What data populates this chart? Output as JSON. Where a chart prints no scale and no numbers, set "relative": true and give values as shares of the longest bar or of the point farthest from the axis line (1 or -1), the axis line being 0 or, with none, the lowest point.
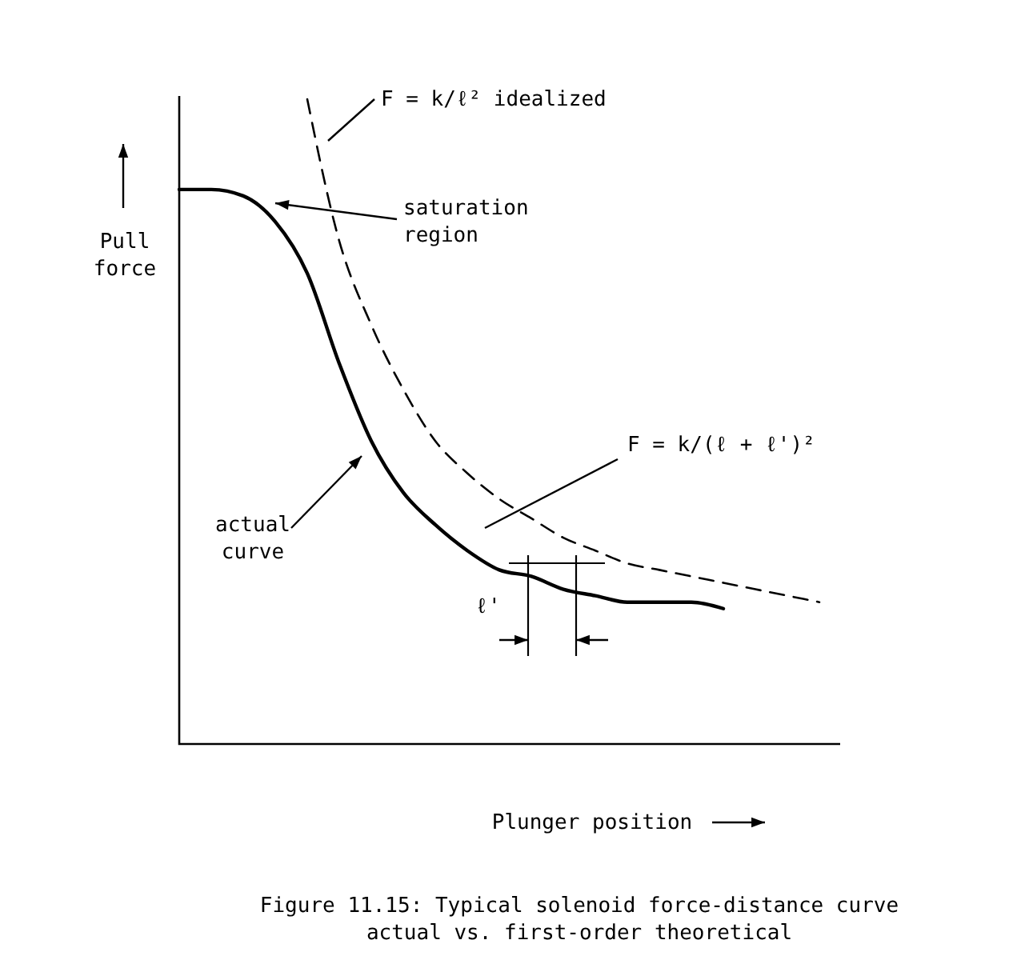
{
  "chart_data": {
    "type": "line",
    "relative": true,
    "ylabel": "Pull force",
    "xlabel": "Plunger position",
    "categories": [
      null,
      null,
      null,
      null,
      null,
      null,
      null,
      null,
      null,
      null,
      null,
      null,
      null,
      null,
      null,
      null,
      null,
      null,
      null,
      null,
      null
    ],
    "series": [
      {
        "name": "actual curve",
        "color": "#000000",
        "line_style": "solid",
        "values": [
          0.86,
          0.86,
          0.85,
          0.81,
          0.73,
          0.59,
          0.47,
          0.39,
          0.34,
          0.3,
          0.27,
          0.26,
          0.24,
          0.23,
          0.22,
          0.22,
          0.22,
          0.21,
          null,
          null,
          null
        ]
      },
      {
        "color": "#000000",
        "line_style": "dashed",
        "values": [
          null,
          null,
          null,
          null,
          1.0,
          0.78,
          0.65,
          0.55,
          0.47,
          0.42,
          0.38,
          0.35,
          0.32,
          0.3,
          0.28,
          0.27,
          0.26,
          0.25,
          0.24,
          0.23,
          0.22
        ]
      }
    ],
    "annotations": [
      "F = k/ℓ²  idealized",
      "saturation region",
      "F = k/(ℓ + ℓ')²",
      "ℓ'",
      "Figure 11.15: Typical solenoid force-distance curve\nactual vs. first-order theoretical"
    ]
  }
}
